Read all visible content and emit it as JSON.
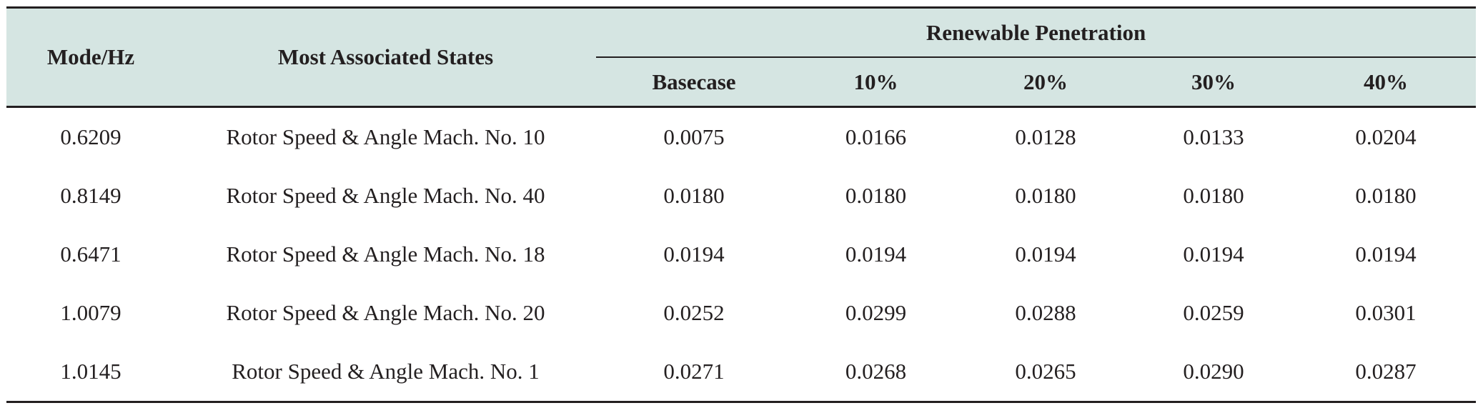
{
  "header": {
    "mode_label": "Mode/Hz",
    "states_label": "Most Associated States",
    "group_label": "Renewable Penetration",
    "penetration_columns": [
      "Basecase",
      "10%",
      "20%",
      "30%",
      "40%"
    ]
  },
  "rows": [
    {
      "mode": "0.6209",
      "states": "Rotor Speed & Angle  Mach. No. 10",
      "values": [
        "0.0075",
        "0.0166",
        "0.0128",
        "0.0133",
        "0.0204"
      ]
    },
    {
      "mode": "0.8149",
      "states": "Rotor Speed & Angle  Mach. No. 40",
      "values": [
        "0.0180",
        "0.0180",
        "0.0180",
        "0.0180",
        "0.0180"
      ]
    },
    {
      "mode": "0.6471",
      "states": "Rotor Speed & Angle  Mach. No. 18",
      "values": [
        "0.0194",
        "0.0194",
        "0.0194",
        "0.0194",
        "0.0194"
      ]
    },
    {
      "mode": "1.0079",
      "states": "Rotor Speed & Angle  Mach. No. 20",
      "values": [
        "0.0252",
        "0.0299",
        "0.0288",
        "0.0259",
        "0.0301"
      ]
    },
    {
      "mode": "1.0145",
      "states": "Rotor Speed & Angle  Mach. No. 1",
      "values": [
        "0.0271",
        "0.0268",
        "0.0265",
        "0.0290",
        "0.0287"
      ]
    }
  ],
  "colors": {
    "header_background": "#d5e5e2",
    "rule": "#231f20",
    "text": "#231f20"
  }
}
